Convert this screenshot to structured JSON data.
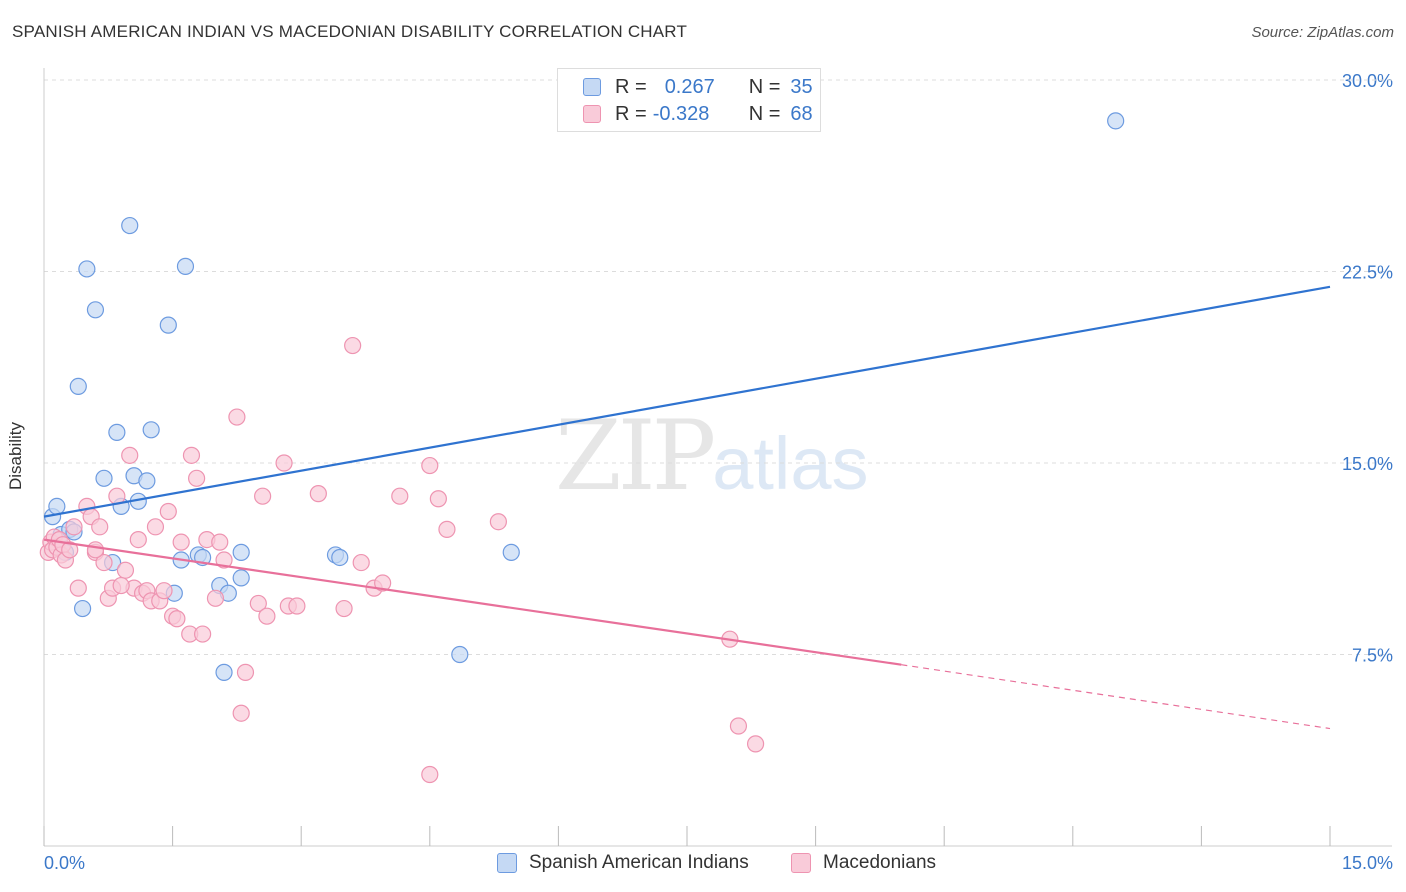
{
  "title": "SPANISH AMERICAN INDIAN VS MACEDONIAN DISABILITY CORRELATION CHART",
  "source": "Source: ZipAtlas.com",
  "watermark": {
    "zip": "ZIP",
    "atlas": "atlas"
  },
  "legend": {
    "rows": [
      {
        "r_label": "R =",
        "r_value": "0.267",
        "n_label": "N =",
        "n_value": "35"
      },
      {
        "r_label": "R =",
        "r_value": "-0.328",
        "n_label": "N =",
        "n_value": "68"
      }
    ]
  },
  "bottom_legend": [
    "Spanish American Indians",
    "Macedonians"
  ],
  "colors": {
    "blue_fill": "#c5d9f4",
    "blue_stroke": "#6d9be0",
    "blue_line": "#2f73d0",
    "pink_fill": "#f9cbd9",
    "pink_stroke": "#ee94b1",
    "pink_line": "#e8709a",
    "tick_text": "#3b78c9",
    "grid": "#dcdcdc"
  },
  "chart_data": {
    "type": "scatter",
    "title": "SPANISH AMERICAN INDIAN VS MACEDONIAN DISABILITY CORRELATION CHART",
    "xlabel": "",
    "ylabel": "Disability",
    "xlim": [
      0,
      15
    ],
    "ylim": [
      0,
      30
    ],
    "x_tick_labels": [
      "0.0%",
      "15.0%"
    ],
    "y_ticks": [
      7.5,
      15.0,
      22.5,
      30.0
    ],
    "y_tick_labels": [
      "7.5%",
      "15.0%",
      "22.5%",
      "30.0%"
    ],
    "grid": true,
    "legend_position": "top-center",
    "series": [
      {
        "name": "Spanish American Indians",
        "color": "#6d9be0",
        "r": 0.267,
        "n": 35,
        "trend": {
          "x": [
            0,
            15
          ],
          "y": [
            12.9,
            21.9
          ]
        },
        "points": [
          [
            0.1,
            12.9
          ],
          [
            0.15,
            13.3
          ],
          [
            0.2,
            12.2
          ],
          [
            0.25,
            11.5
          ],
          [
            0.3,
            12.4
          ],
          [
            0.35,
            12.3
          ],
          [
            0.4,
            18.0
          ],
          [
            0.45,
            9.3
          ],
          [
            0.5,
            22.6
          ],
          [
            0.6,
            21.0
          ],
          [
            0.7,
            14.4
          ],
          [
            0.8,
            11.1
          ],
          [
            0.85,
            16.2
          ],
          [
            0.9,
            13.3
          ],
          [
            1.0,
            24.3
          ],
          [
            1.05,
            14.5
          ],
          [
            1.1,
            13.5
          ],
          [
            1.2,
            14.3
          ],
          [
            1.25,
            16.3
          ],
          [
            1.45,
            20.4
          ],
          [
            1.52,
            9.9
          ],
          [
            1.6,
            11.2
          ],
          [
            1.65,
            22.7
          ],
          [
            1.8,
            11.4
          ],
          [
            1.85,
            11.3
          ],
          [
            2.05,
            10.2
          ],
          [
            2.1,
            6.8
          ],
          [
            2.15,
            9.9
          ],
          [
            2.3,
            10.5
          ],
          [
            2.3,
            11.5
          ],
          [
            3.4,
            11.4
          ],
          [
            3.45,
            11.3
          ],
          [
            4.85,
            7.5
          ],
          [
            5.45,
            11.5
          ],
          [
            12.5,
            28.4
          ]
        ]
      },
      {
        "name": "Macedonians",
        "color": "#ee94b1",
        "r": -0.328,
        "n": 68,
        "trend": {
          "x": [
            0,
            10.0
          ],
          "y": [
            12.0,
            7.1
          ]
        },
        "trend_dashed": {
          "x": [
            10.0,
            15
          ],
          "y": [
            7.1,
            4.6
          ]
        },
        "points": [
          [
            0.05,
            11.5
          ],
          [
            0.08,
            11.9
          ],
          [
            0.1,
            11.6
          ],
          [
            0.12,
            12.1
          ],
          [
            0.15,
            11.7
          ],
          [
            0.18,
            12.0
          ],
          [
            0.2,
            11.4
          ],
          [
            0.22,
            11.8
          ],
          [
            0.25,
            11.2
          ],
          [
            0.3,
            11.6
          ],
          [
            0.35,
            12.5
          ],
          [
            0.4,
            10.1
          ],
          [
            0.5,
            13.3
          ],
          [
            0.55,
            12.9
          ],
          [
            0.6,
            11.5
          ],
          [
            0.65,
            12.5
          ],
          [
            0.7,
            11.1
          ],
          [
            0.75,
            9.7
          ],
          [
            0.8,
            10.1
          ],
          [
            0.85,
            13.7
          ],
          [
            0.95,
            10.8
          ],
          [
            1.0,
            15.3
          ],
          [
            1.05,
            10.1
          ],
          [
            1.1,
            12.0
          ],
          [
            1.15,
            9.9
          ],
          [
            1.2,
            10.0
          ],
          [
            1.25,
            9.6
          ],
          [
            1.3,
            12.5
          ],
          [
            1.35,
            9.6
          ],
          [
            1.45,
            13.1
          ],
          [
            1.5,
            9.0
          ],
          [
            1.55,
            8.9
          ],
          [
            1.6,
            11.9
          ],
          [
            1.7,
            8.3
          ],
          [
            1.72,
            15.3
          ],
          [
            1.78,
            14.4
          ],
          [
            1.85,
            8.3
          ],
          [
            1.9,
            12.0
          ],
          [
            2.0,
            9.7
          ],
          [
            2.05,
            11.9
          ],
          [
            2.1,
            11.2
          ],
          [
            2.25,
            16.8
          ],
          [
            2.3,
            5.2
          ],
          [
            2.35,
            6.8
          ],
          [
            2.5,
            9.5
          ],
          [
            2.55,
            13.7
          ],
          [
            2.6,
            9.0
          ],
          [
            2.8,
            15.0
          ],
          [
            2.85,
            9.4
          ],
          [
            2.95,
            9.4
          ],
          [
            3.2,
            13.8
          ],
          [
            3.5,
            9.3
          ],
          [
            3.6,
            19.6
          ],
          [
            3.7,
            11.1
          ],
          [
            3.85,
            10.1
          ],
          [
            3.95,
            10.3
          ],
          [
            4.15,
            13.7
          ],
          [
            4.5,
            14.9
          ],
          [
            4.6,
            13.6
          ],
          [
            4.7,
            12.4
          ],
          [
            4.5,
            2.8
          ],
          [
            5.3,
            12.7
          ],
          [
            8.0,
            8.1
          ],
          [
            8.1,
            4.7
          ],
          [
            8.3,
            4.0
          ],
          [
            0.6,
            11.6
          ],
          [
            0.9,
            10.2
          ],
          [
            1.4,
            10.0
          ]
        ]
      }
    ]
  }
}
